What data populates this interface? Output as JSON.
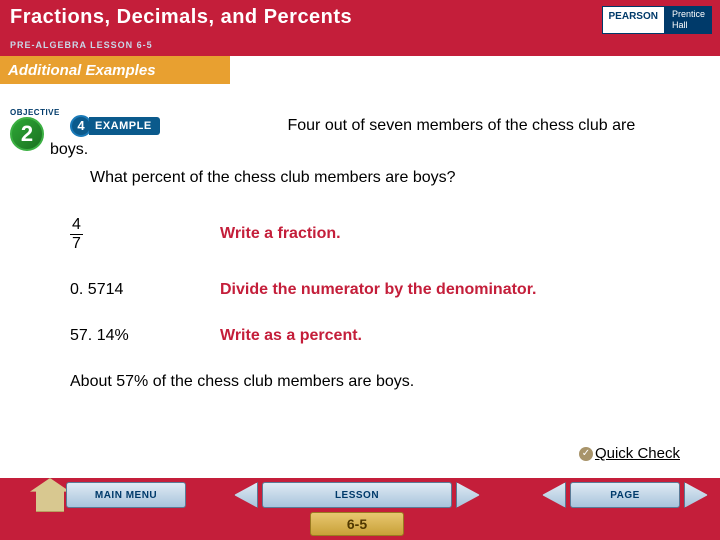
{
  "header": {
    "title": "Fractions, Decimals, and Percents",
    "subtitle": "PRE-ALGEBRA LESSON 6-5",
    "publisher_top": "PEARSON",
    "publisher_bot1": "Prentice",
    "publisher_bot2": "Hall"
  },
  "section_label": "Additional Examples",
  "objective": {
    "label": "OBJECTIVE",
    "number": "2"
  },
  "example": {
    "number": "4",
    "label": "EXAMPLE"
  },
  "problem": {
    "line1": "Four out of seven members of the chess club are boys.",
    "line2": "What percent of the chess club members are boys?"
  },
  "steps": [
    {
      "value_top": "4",
      "value_bot": "7",
      "is_fraction": true,
      "desc": "Write a fraction."
    },
    {
      "value": "0. 5714",
      "is_fraction": false,
      "desc": "Divide the numerator by the denominator."
    },
    {
      "value": "57. 14%",
      "is_fraction": false,
      "desc": "Write as a percent."
    }
  ],
  "conclusion": "About 57% of the chess club members are boys.",
  "quick_check": "Quick Check",
  "footer": {
    "main_menu": "MAIN MENU",
    "lesson": "LESSON",
    "page": "PAGE",
    "lesson_num": "6-5"
  },
  "colors": {
    "red": "#c41e3a",
    "blue": "#003a6a",
    "yellow": "#e8a030",
    "green": "#2ea836",
    "step_red": "#c41e3a"
  }
}
